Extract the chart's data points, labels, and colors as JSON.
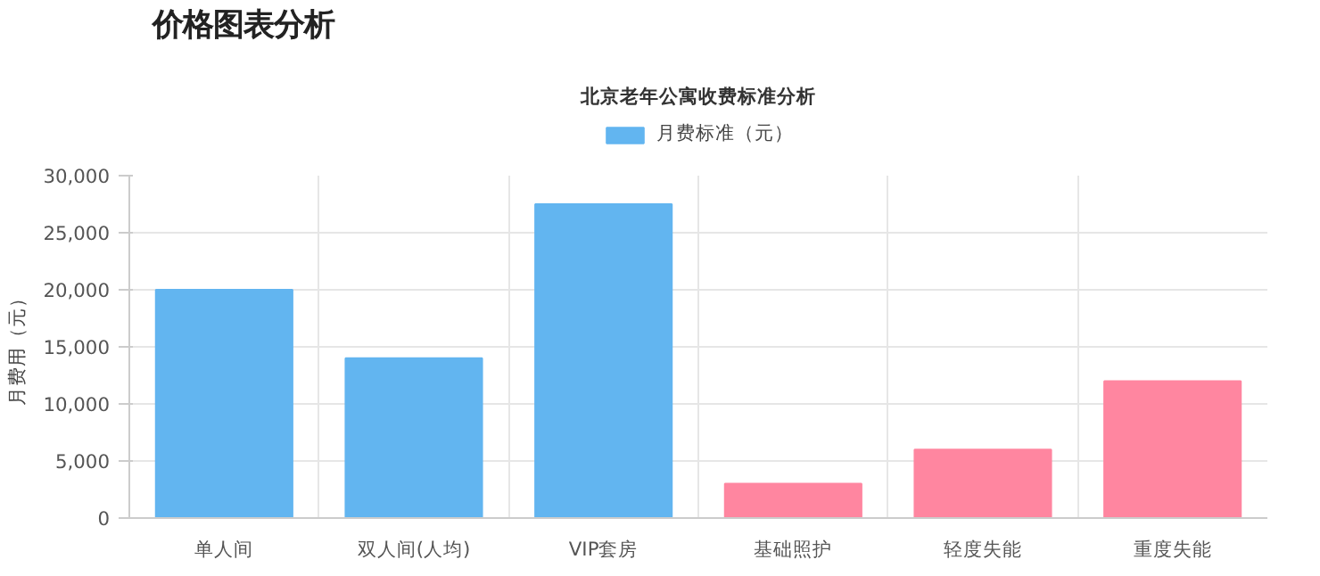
{
  "chart_data": {
    "type": "bar",
    "title": "价格图表分析",
    "subtitle": "北京老年公寓收费标准分析",
    "ylabel": "月费用（元）",
    "categories": [
      "单人间",
      "双人间(人均)",
      "VIP套房",
      "基础照护",
      "轻度失能",
      "重度失能"
    ],
    "series": [
      {
        "name": "月费标准（元）",
        "color": "#62b5f0",
        "colors": [
          "#62b5f0",
          "#62b5f0",
          "#62b5f0",
          "#ff86a0",
          "#ff86a0",
          "#ff86a0"
        ],
        "values": [
          20000,
          14000,
          27500,
          3000,
          6000,
          12000
        ]
      }
    ],
    "ylim": [
      0,
      30000
    ],
    "yticks": [
      0,
      {
        "value": 5000,
        "label": "5,000"
      },
      {
        "value": 10000,
        "label": "10,000"
      },
      {
        "value": 15000,
        "label": "15,000"
      },
      {
        "value": 20000,
        "label": "20,000"
      },
      {
        "value": 25000,
        "label": "25,000"
      },
      {
        "value": 30000,
        "label": "30,000"
      }
    ],
    "grid": true,
    "legend": "top"
  }
}
